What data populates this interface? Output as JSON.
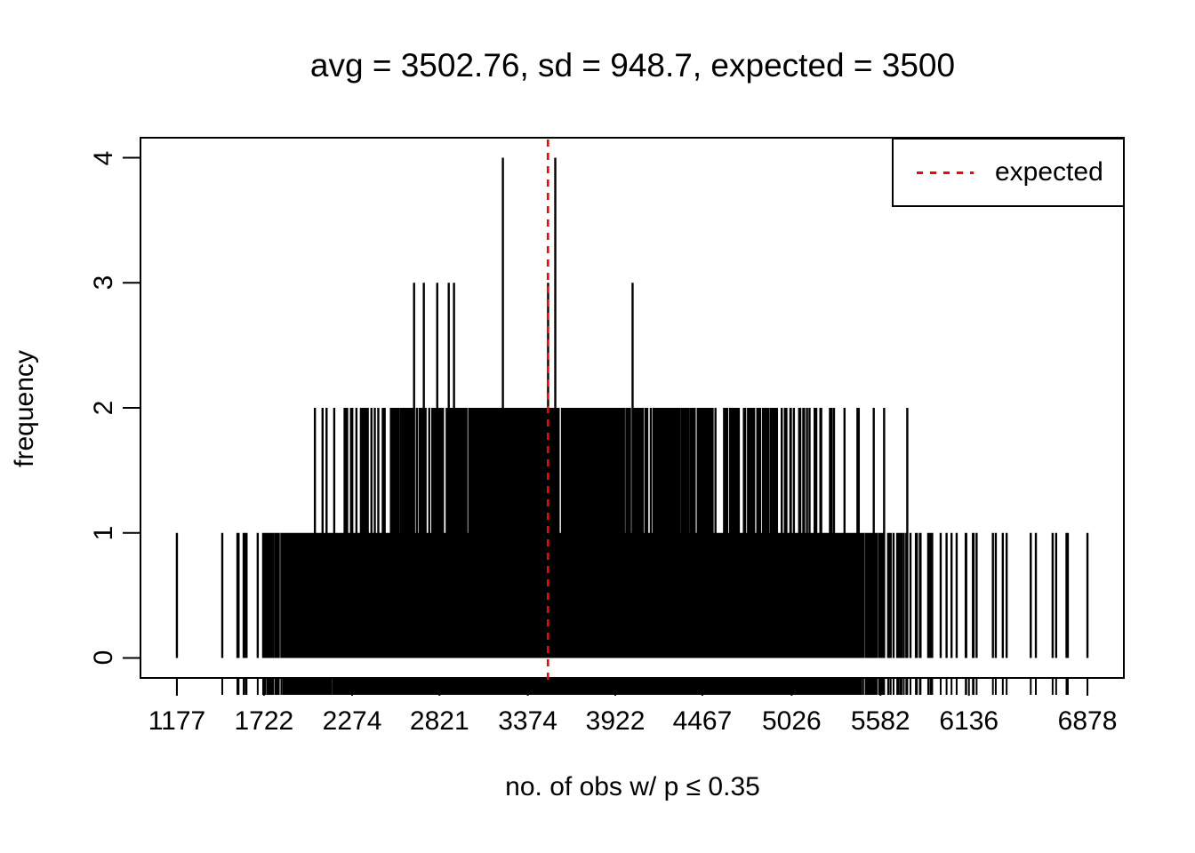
{
  "title": "avg = 3502.76, sd = 948.7, expected = 3500",
  "legend": {
    "label": "expected"
  },
  "colors": {
    "spike": "#000000",
    "expected_line": "#ff0000",
    "axis": "#000000",
    "background": "#ffffff"
  },
  "chart_data": {
    "type": "bar",
    "subtype": "frequency-spike-plot",
    "title": "avg = 3502.76, sd = 948.7, expected = 3500",
    "xlabel": "no. of obs w/ p ≤ 0.35",
    "ylabel": "frequency",
    "summary": {
      "avg": 3502.76,
      "sd": 948.7,
      "expected": 3500
    },
    "x_data_range": [
      1177,
      6878
    ],
    "ylim": [
      0,
      4
    ],
    "axis_padding_fraction": 0.04,
    "x_tick_values": [
      1177,
      1722,
      2274,
      2821,
      3374,
      3922,
      4467,
      5026,
      5582,
      6136,
      6878
    ],
    "x_tick_labels": [
      "1177",
      "1722",
      "2274",
      "2821",
      "3374",
      "3922",
      "4467",
      "5026",
      "5582",
      "6136",
      "6878"
    ],
    "y_tick_values": [
      0,
      1,
      2,
      3,
      4
    ],
    "y_tick_labels": [
      "0",
      "1",
      "2",
      "3",
      "4"
    ],
    "grid": false,
    "legend": {
      "label": "expected",
      "position": "topright",
      "line_style": "dotted",
      "line_color": "#ff0000"
    },
    "expected_line": {
      "value": 3500,
      "color": "#ff0000",
      "style": "dotted",
      "orientation": "vertical"
    },
    "rug_ticks": "one tick below axis at every observed x value",
    "spikes_height4": [
      3218,
      3546
    ],
    "spikes_height3": [
      2662,
      2723,
      2807,
      2879,
      2912,
      3501,
      4030
    ],
    "forced_singles": [
      1177,
      1461,
      1563,
      1683,
      1717,
      5810,
      5899,
      6027,
      6116,
      6161,
      6372,
      6555,
      6878
    ],
    "forced_doubles": [
      5438,
      5605
    ],
    "presence_profile": [
      [
        1177,
        0.004
      ],
      [
        1350,
        0.006
      ],
      [
        1550,
        0.012
      ],
      [
        1700,
        0.04
      ],
      [
        1780,
        0.12
      ],
      [
        1860,
        0.3
      ],
      [
        2000,
        0.45
      ],
      [
        2200,
        0.58
      ],
      [
        2500,
        0.68
      ],
      [
        2900,
        0.73
      ],
      [
        3500,
        0.75
      ],
      [
        4000,
        0.72
      ],
      [
        4400,
        0.66
      ],
      [
        4800,
        0.56
      ],
      [
        5100,
        0.45
      ],
      [
        5350,
        0.32
      ],
      [
        5550,
        0.18
      ],
      [
        5700,
        0.07
      ],
      [
        5900,
        0.03
      ],
      [
        6200,
        0.015
      ],
      [
        6500,
        0.008
      ],
      [
        6878,
        0.004
      ]
    ],
    "double_profile": [
      [
        1177,
        0.0
      ],
      [
        1900,
        0.01
      ],
      [
        2100,
        0.05
      ],
      [
        2400,
        0.12
      ],
      [
        2700,
        0.22
      ],
      [
        3000,
        0.3
      ],
      [
        3300,
        0.36
      ],
      [
        3600,
        0.36
      ],
      [
        3900,
        0.3
      ],
      [
        4200,
        0.26
      ],
      [
        4500,
        0.21
      ],
      [
        4800,
        0.15
      ],
      [
        5100,
        0.1
      ],
      [
        5400,
        0.06
      ],
      [
        5600,
        0.03
      ],
      [
        5900,
        0.01
      ],
      [
        6878,
        0.0
      ]
    ],
    "random_seed": 1337
  }
}
